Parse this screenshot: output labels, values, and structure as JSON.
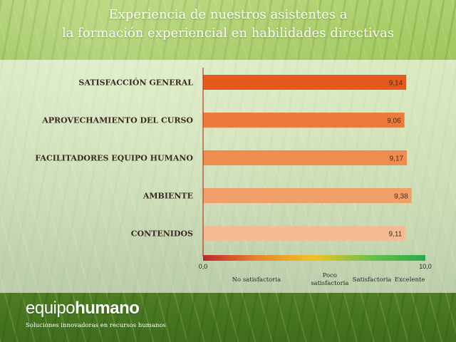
{
  "chart_data": {
    "type": "bar",
    "orientation": "horizontal",
    "title": "Experiencia de nuestros asistentes a la formación experiencial en habilidades directivas",
    "title_lines": [
      "Experiencia de nuestros asistentes a",
      "la formación experiencial en habilidades directivas"
    ],
    "categories": [
      "SATISFACCIÓN GENERAL",
      "APROVECHAMIENTO DEL CURSO",
      "FACILITADORES EQUIPO HUMANO",
      "AMBIENTE",
      "CONTENIDOS"
    ],
    "values": [
      9.14,
      9.06,
      9.17,
      9.38,
      9.11
    ],
    "value_labels": [
      "9,14",
      "9,06",
      "9,17",
      "9,38",
      "9,11"
    ],
    "bar_colors": [
      "#e55a1c",
      "#ec7a3a",
      "#ef8c4f",
      "#f2a06a",
      "#f6bb95"
    ],
    "xlim": [
      0,
      10
    ],
    "x_tick_labels": [
      "0,0",
      "10,0"
    ],
    "scale_gradient": [
      "#c0262b",
      "#e6882c",
      "#f0c228",
      "#6cc24a",
      "#2aa84a"
    ],
    "scale_labels": [
      {
        "text": "No satisfactoria",
        "value": 2.4
      },
      {
        "text": "Poco\nsatisfactoria",
        "value": 5.7
      },
      {
        "text": "Satisfactoria",
        "value": 7.6
      },
      {
        "text": "Excelente",
        "value": 9.3
      }
    ],
    "grid": false
  },
  "brand": {
    "name_light": "equipo",
    "name_bold": "humano",
    "tagline": "Soluciones innovadoras en recursos humanos"
  }
}
